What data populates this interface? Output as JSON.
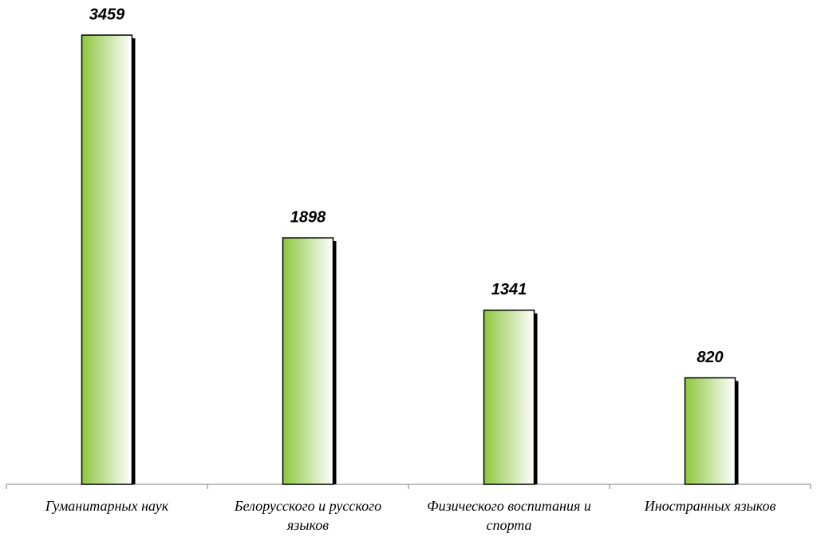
{
  "chart_data": {
    "type": "bar",
    "categories": [
      "Гуманитарных наук",
      "Белорусского и русского языков",
      "Физического воспитания и спорта",
      "Иностранных языков"
    ],
    "values": [
      3459,
      1898,
      1341,
      820
    ],
    "color": "#8dc63f"
  }
}
